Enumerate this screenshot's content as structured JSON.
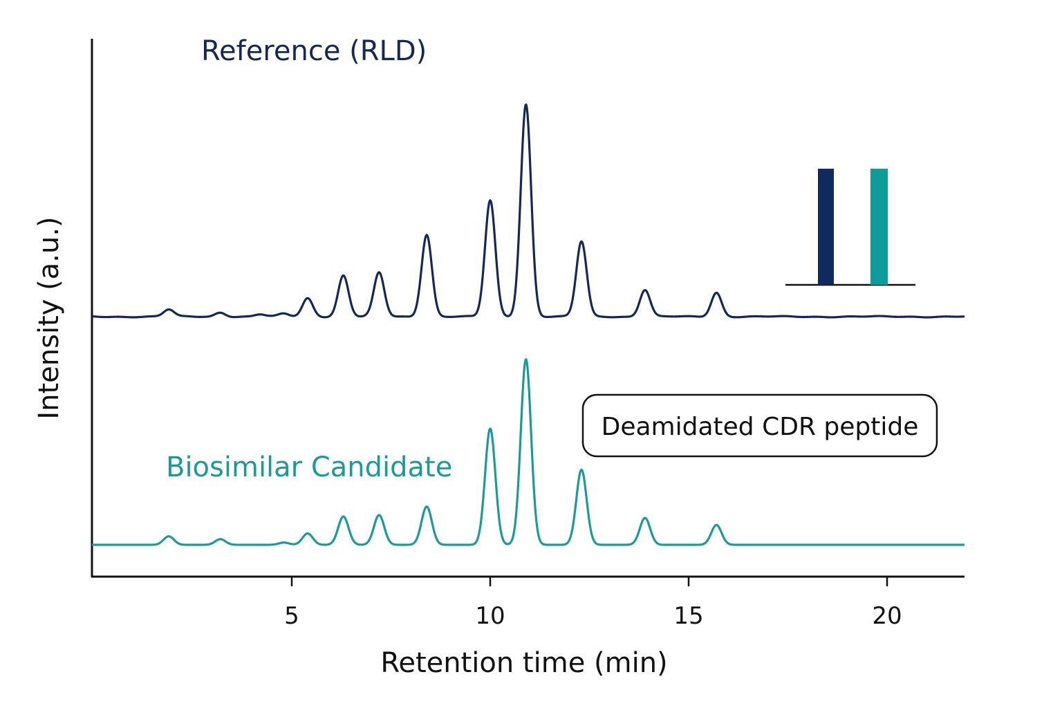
{
  "chart_data": {
    "type": "line",
    "xlabel": "Retention time (min)",
    "ylabel": "Intensity (a.u.)",
    "xlim": [
      0,
      22
    ],
    "x_ticks": [
      "5",
      "10",
      "15",
      "20"
    ],
    "grid": false,
    "series": [
      {
        "name": "Reference (RLD)",
        "color": "#14275a",
        "peaks": [
          {
            "x": 1.9,
            "h": 0.025
          },
          {
            "x": 3.2,
            "h": 0.015
          },
          {
            "x": 4.2,
            "h": 0.008
          },
          {
            "x": 4.8,
            "h": 0.01
          },
          {
            "x": 5.4,
            "h": 0.065
          },
          {
            "x": 6.3,
            "h": 0.145
          },
          {
            "x": 7.2,
            "h": 0.155
          },
          {
            "x": 8.4,
            "h": 0.29
          },
          {
            "x": 10.0,
            "h": 0.41
          },
          {
            "x": 10.9,
            "h": 0.75
          },
          {
            "x": 12.3,
            "h": 0.265
          },
          {
            "x": 13.9,
            "h": 0.095
          },
          {
            "x": 15.7,
            "h": 0.085
          }
        ]
      },
      {
        "name": "Biosimilar Candidate",
        "color": "#1a9a9a",
        "peaks": [
          {
            "x": 1.9,
            "h": 0.03
          },
          {
            "x": 3.2,
            "h": 0.02
          },
          {
            "x": 4.8,
            "h": 0.008
          },
          {
            "x": 5.4,
            "h": 0.04
          },
          {
            "x": 6.3,
            "h": 0.1
          },
          {
            "x": 7.2,
            "h": 0.105
          },
          {
            "x": 8.4,
            "h": 0.135
          },
          {
            "x": 10.0,
            "h": 0.41
          },
          {
            "x": 10.9,
            "h": 0.655
          },
          {
            "x": 12.3,
            "h": 0.265
          },
          {
            "x": 13.9,
            "h": 0.095
          },
          {
            "x": 15.7,
            "h": 0.07
          }
        ]
      }
    ],
    "inset_bars": {
      "values": [
        1.0,
        1.0
      ],
      "colors": [
        "#0f2a5c",
        "#0e9b9b"
      ]
    },
    "annotation": "Deamidated CDR peptide"
  }
}
